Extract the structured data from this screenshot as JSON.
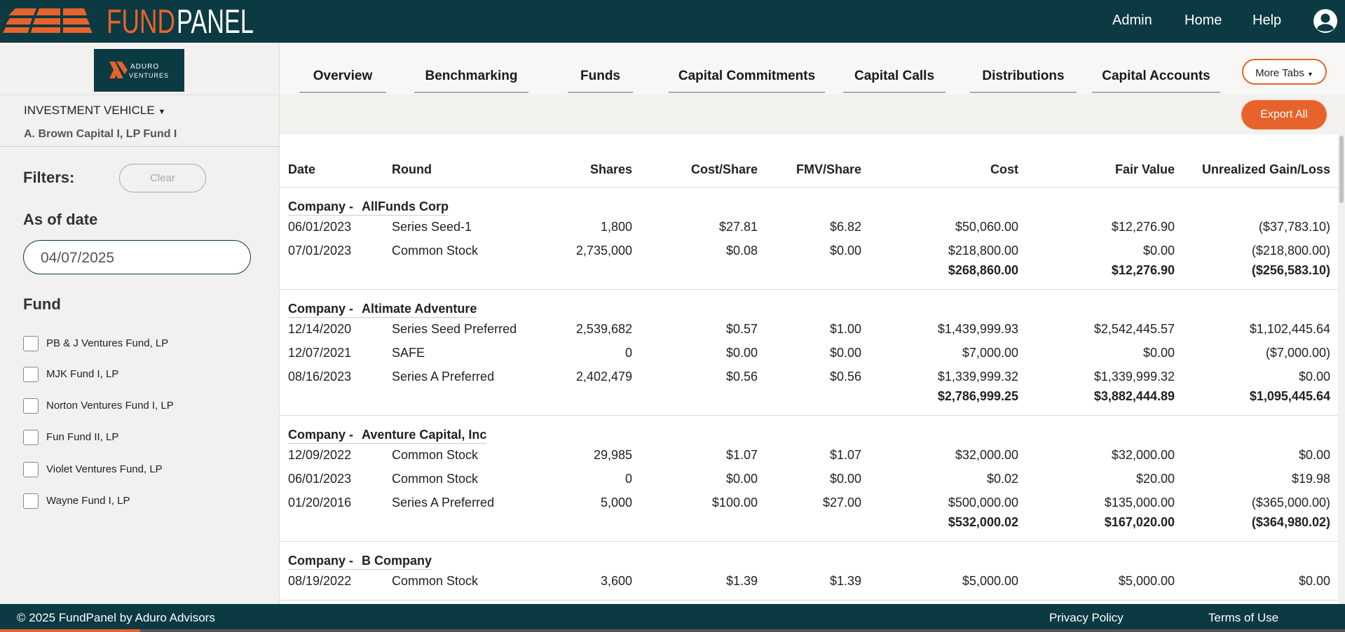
{
  "header": {
    "brand_1": "FUND",
    "brand_2": "PANEL",
    "nav": [
      "Admin",
      "Home",
      "Help"
    ]
  },
  "sidebar": {
    "logo_1": "ADURO",
    "logo_2": "VENTURES",
    "vehicle_label": "INVESTMENT VEHICLE",
    "vehicle": "A. Brown Capital I, LP Fund I",
    "filters": "Filters:",
    "clear": "Clear",
    "as_of_label": "As of date",
    "as_of": "04/07/2025",
    "fund_label": "Fund",
    "funds": [
      "PB & J Ventures Fund, LP",
      "MJK Fund I, LP",
      "Norton Ventures Fund I, LP",
      "Fun Fund II, LP",
      "Violet Ventures Fund, LP",
      "Wayne Fund I, LP"
    ]
  },
  "tabs": [
    "Overview",
    "Benchmarking",
    "Funds",
    "Capital Commitments",
    "Capital Calls",
    "Distributions",
    "Capital Accounts"
  ],
  "more_tabs": "More Tabs",
  "export": "Export All",
  "table": {
    "columns": [
      "Date",
      "Round",
      "Shares",
      "Cost/Share",
      "FMV/Share",
      "Cost",
      "Fair Value",
      "Unrealized Gain/Loss"
    ],
    "groups": [
      {
        "prefix": "Company -",
        "company": "AllFunds Corp",
        "rows": [
          [
            "06/01/2023",
            "Series Seed-1",
            "1,800",
            "$27.81",
            "$6.82",
            "$50,060.00",
            "$12,276.90",
            "($37,783.10)"
          ],
          [
            "07/01/2023",
            "Common Stock",
            "2,735,000",
            "$0.08",
            "$0.00",
            "$218,800.00",
            "$0.00",
            "($218,800.00)"
          ]
        ],
        "total": [
          "$268,860.00",
          "$12,276.90",
          "($256,583.10)"
        ]
      },
      {
        "prefix": "Company -",
        "company": "Altimate Adventure",
        "rows": [
          [
            "12/14/2020",
            "Series Seed Preferred",
            "2,539,682",
            "$0.57",
            "$1.00",
            "$1,439,999.93",
            "$2,542,445.57",
            "$1,102,445.64"
          ],
          [
            "12/07/2021",
            "SAFE",
            "0",
            "$0.00",
            "$0.00",
            "$7,000.00",
            "$0.00",
            "($7,000.00)"
          ],
          [
            "08/16/2023",
            "Series A Preferred",
            "2,402,479",
            "$0.56",
            "$0.56",
            "$1,339,999.32",
            "$1,339,999.32",
            "$0.00"
          ]
        ],
        "total": [
          "$2,786,999.25",
          "$3,882,444.89",
          "$1,095,445.64"
        ]
      },
      {
        "prefix": "Company -",
        "company": "Aventure Capital, Inc",
        "rows": [
          [
            "12/09/2022",
            "Common Stock",
            "29,985",
            "$1.07",
            "$1.07",
            "$32,000.00",
            "$32,000.00",
            "$0.00"
          ],
          [
            "06/01/2023",
            "Common Stock",
            "0",
            "$0.00",
            "$0.00",
            "$0.02",
            "$20.00",
            "$19.98"
          ],
          [
            "01/20/2016",
            "Series A Preferred",
            "5,000",
            "$100.00",
            "$27.00",
            "$500,000.00",
            "$135,000.00",
            "($365,000.00)"
          ]
        ],
        "total": [
          "$532,000.02",
          "$167,020.00",
          "($364,980.02)"
        ]
      },
      {
        "prefix": "Company -",
        "company": "B Company",
        "rows": [
          [
            "08/19/2022",
            "Common Stock",
            "3,600",
            "$1.39",
            "$1.39",
            "$5,000.00",
            "$5,000.00",
            "$0.00"
          ]
        ]
      }
    ]
  },
  "footer": {
    "copyright": "© 2025 FundPanel by Aduro Advisors",
    "links": [
      "Privacy Policy",
      "Terms of Use"
    ]
  }
}
